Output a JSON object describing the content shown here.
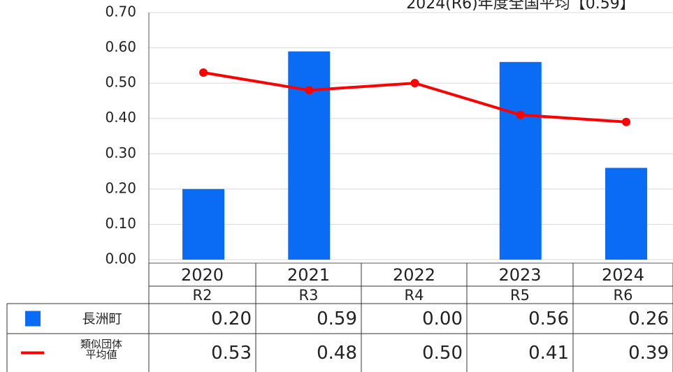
{
  "chart_data": {
    "type": "bar",
    "title": "2024(R6)年度全国平均【0.59】",
    "categories": [
      "2020",
      "2021",
      "2022",
      "2023",
      "2024"
    ],
    "category_sublabels": [
      "R2",
      "R3",
      "R4",
      "R5",
      "R6"
    ],
    "series": [
      {
        "name": "長洲町",
        "type": "bar",
        "color": "#0a6cf5",
        "values": [
          0.2,
          0.59,
          0,
          0.56,
          0.26
        ],
        "value_labels": [
          "0.20",
          "0.59",
          "0.00",
          "0.56",
          "0.26"
        ]
      },
      {
        "name": "類似団体平均値",
        "type": "line",
        "color": "#ff0000",
        "values": [
          0.53,
          0.48,
          0.5,
          0.41,
          0.39
        ],
        "value_labels": [
          "0.53",
          "0.48",
          "0.50",
          "0.41",
          "0.39"
        ]
      }
    ],
    "ylim": [
      0,
      0.7
    ],
    "yticks": [
      {
        "value": 0,
        "label": "0.00"
      },
      {
        "value": 0.1,
        "label": "0.10"
      },
      {
        "value": 0.2,
        "label": "0.20"
      },
      {
        "value": 0.3,
        "label": "0.30"
      },
      {
        "value": 0.4,
        "label": "0.40"
      },
      {
        "value": 0.5,
        "label": "0.50"
      },
      {
        "value": 0.6,
        "label": "0.60"
      },
      {
        "value": 0.7,
        "label": "0.70"
      }
    ],
    "grid": true
  }
}
